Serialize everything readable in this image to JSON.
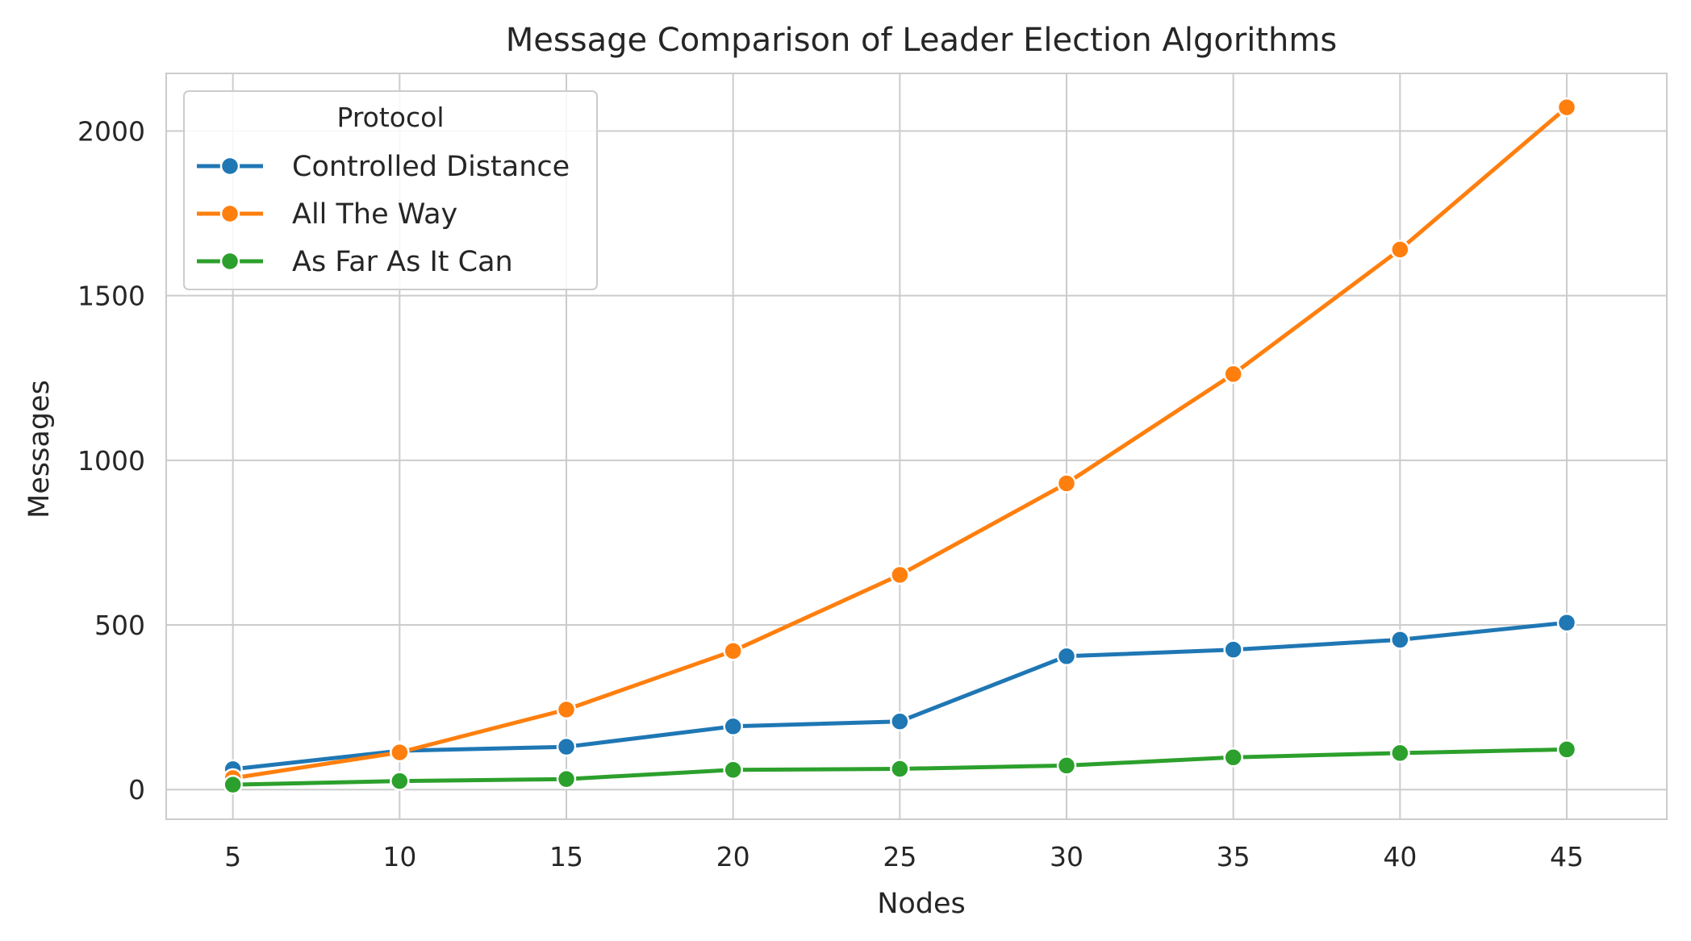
{
  "chart_data": {
    "type": "line",
    "title": "Message Comparison of Leader Election Algorithms",
    "xlabel": "Nodes",
    "ylabel": "Messages",
    "x": [
      5,
      10,
      15,
      20,
      25,
      30,
      35,
      40,
      45
    ],
    "xticks": [
      5,
      10,
      15,
      20,
      25,
      30,
      35,
      40,
      45
    ],
    "yticks": [
      0,
      500,
      1000,
      1500,
      2000
    ],
    "xlim": [
      3,
      48
    ],
    "ylim": [
      -90,
      2175
    ],
    "grid": true,
    "legend": {
      "title": "Protocol",
      "placement": "top-left"
    },
    "series": [
      {
        "name": "Controlled Distance",
        "color": "#1f77b4",
        "values": [
          62,
          118,
          130,
          192,
          207,
          405,
          425,
          455,
          507
        ]
      },
      {
        "name": "All The Way",
        "color": "#ff7f0e",
        "values": [
          35,
          113,
          243,
          421,
          652,
          930,
          1262,
          1640,
          2072
        ]
      },
      {
        "name": "As Far As It Can",
        "color": "#2ca02c",
        "values": [
          15,
          26,
          32,
          60,
          63,
          73,
          98,
          111,
          122
        ]
      }
    ]
  }
}
